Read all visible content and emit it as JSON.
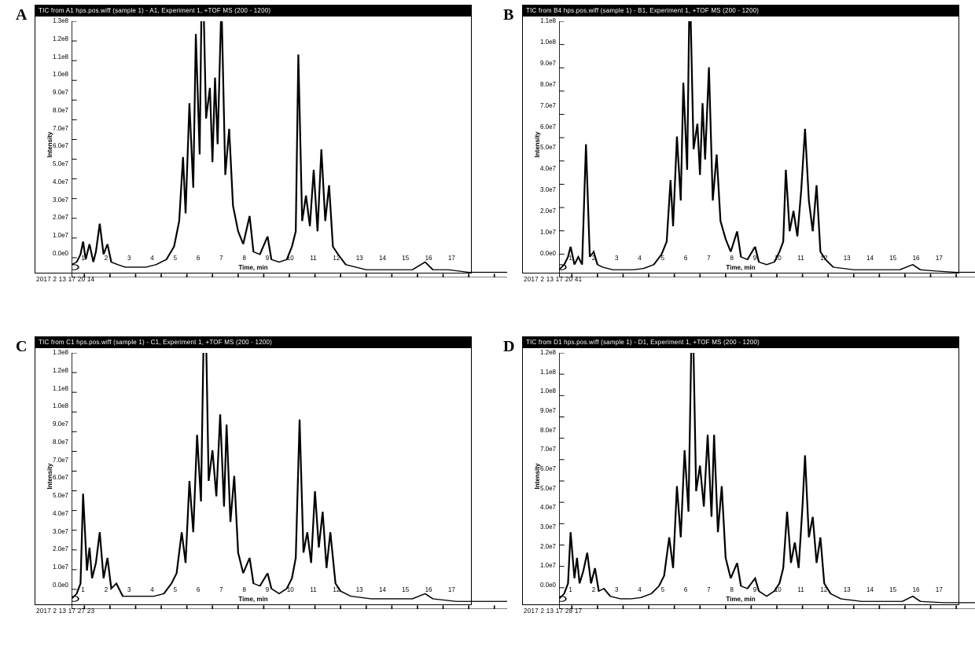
{
  "figure": {
    "aspect": [
      1240,
      822
    ],
    "background_color": "#ffffff",
    "line_color": "#000000",
    "line_width": 1.2,
    "axis_color": "#000000",
    "tick_fontsize": 8,
    "label_fontsize": 8,
    "title_strip_bg": "#000000",
    "title_strip_fg": "#ffffff",
    "panel_letter_font": "Times New Roman",
    "panel_letter_fontsize": 20,
    "ylabel": "Intensity",
    "xlabel": "Time, min",
    "xlim": [
      0.5,
      17.5
    ],
    "xticks": [
      1,
      2,
      3,
      4,
      5,
      6,
      7,
      8,
      9,
      10,
      11,
      12,
      13,
      14,
      15,
      16,
      17
    ]
  },
  "panels": {
    "A": {
      "letter": "A",
      "title": "TIC from A1 hps.pos.wiff (sample 1) - A1, Experiment 1, +TOF MS (200 - 1200)",
      "timestamp": "2017 2 13 17 20 14",
      "ymax_label": "1.3e8",
      "ymax": 130000000.0,
      "yticks": [
        "0.0e0",
        "1.0e7",
        "2.0e7",
        "3.0e7",
        "4.0e7",
        "5.0e7",
        "6.0e7",
        "7.0e7",
        "8.0e7",
        "9.0e7",
        "1.0e8",
        "1.1e8",
        "1.2e8",
        "1.3e8"
      ],
      "series": [
        [
          0.5,
          0.05
        ],
        [
          0.7,
          0.06
        ],
        [
          0.85,
          0.09
        ],
        [
          0.95,
          0.14
        ],
        [
          1.05,
          0.07
        ],
        [
          1.2,
          0.13
        ],
        [
          1.35,
          0.06
        ],
        [
          1.45,
          0.1
        ],
        [
          1.6,
          0.21
        ],
        [
          1.75,
          0.09
        ],
        [
          1.9,
          0.13
        ],
        [
          2.05,
          0.06
        ],
        [
          2.3,
          0.05
        ],
        [
          2.6,
          0.04
        ],
        [
          3.0,
          0.04
        ],
        [
          3.4,
          0.04
        ],
        [
          3.8,
          0.05
        ],
        [
          4.2,
          0.07
        ],
        [
          4.5,
          0.12
        ],
        [
          4.7,
          0.22
        ],
        [
          4.85,
          0.47
        ],
        [
          4.95,
          0.25
        ],
        [
          5.1,
          0.68
        ],
        [
          5.25,
          0.35
        ],
        [
          5.35,
          0.95
        ],
        [
          5.5,
          0.48
        ],
        [
          5.6,
          1.3
        ],
        [
          5.75,
          0.62
        ],
        [
          5.9,
          0.74
        ],
        [
          6.0,
          0.45
        ],
        [
          6.1,
          0.78
        ],
        [
          6.2,
          0.52
        ],
        [
          6.35,
          1.08
        ],
        [
          6.5,
          0.4
        ],
        [
          6.65,
          0.58
        ],
        [
          6.8,
          0.28
        ],
        [
          7.0,
          0.18
        ],
        [
          7.2,
          0.13
        ],
        [
          7.45,
          0.24
        ],
        [
          7.6,
          0.1
        ],
        [
          7.85,
          0.09
        ],
        [
          8.15,
          0.16
        ],
        [
          8.3,
          0.07
        ],
        [
          8.6,
          0.06
        ],
        [
          8.9,
          0.07
        ],
        [
          9.1,
          0.12
        ],
        [
          9.25,
          0.18
        ],
        [
          9.35,
          0.87
        ],
        [
          9.5,
          0.22
        ],
        [
          9.65,
          0.32
        ],
        [
          9.8,
          0.2
        ],
        [
          9.95,
          0.42
        ],
        [
          10.1,
          0.18
        ],
        [
          10.25,
          0.5
        ],
        [
          10.4,
          0.22
        ],
        [
          10.55,
          0.36
        ],
        [
          10.7,
          0.12
        ],
        [
          10.9,
          0.09
        ],
        [
          11.2,
          0.05
        ],
        [
          12.0,
          0.03
        ],
        [
          13.0,
          0.03
        ],
        [
          13.8,
          0.03
        ],
        [
          14.3,
          0.06
        ],
        [
          14.6,
          0.03
        ],
        [
          15.2,
          0.03
        ],
        [
          16.0,
          0.02
        ],
        [
          17.0,
          0.02
        ],
        [
          17.5,
          0.02
        ]
      ]
    },
    "B": {
      "letter": "B",
      "title": "TIC from B4 hps.pos.wiff (sample 1) - B1, Experiment 1, +TOF MS (200 - 1200)",
      "timestamp": "2017 2 13 17 20 41",
      "ymax_label": "1.1e8",
      "ymax": 115000000.0,
      "yticks": [
        "0.0e0",
        "1.0e7",
        "2.0e7",
        "3.0e7",
        "4.0e7",
        "5.0e7",
        "6.0e7",
        "7.0e7",
        "8.0e7",
        "9.0e7",
        "1.0e8",
        "1.1e8"
      ],
      "series": [
        [
          0.5,
          0.03
        ],
        [
          0.7,
          0.05
        ],
        [
          0.85,
          0.08
        ],
        [
          0.95,
          0.12
        ],
        [
          1.1,
          0.05
        ],
        [
          1.25,
          0.08
        ],
        [
          1.4,
          0.05
        ],
        [
          1.55,
          0.52
        ],
        [
          1.7,
          0.08
        ],
        [
          1.85,
          0.1
        ],
        [
          2.0,
          0.05
        ],
        [
          2.2,
          0.04
        ],
        [
          2.6,
          0.03
        ],
        [
          3.0,
          0.03
        ],
        [
          3.4,
          0.03
        ],
        [
          3.8,
          0.035
        ],
        [
          4.2,
          0.05
        ],
        [
          4.5,
          0.09
        ],
        [
          4.7,
          0.14
        ],
        [
          4.85,
          0.38
        ],
        [
          4.95,
          0.2
        ],
        [
          5.1,
          0.55
        ],
        [
          5.25,
          0.3
        ],
        [
          5.35,
          0.76
        ],
        [
          5.5,
          0.42
        ],
        [
          5.6,
          1.18
        ],
        [
          5.75,
          0.5
        ],
        [
          5.9,
          0.6
        ],
        [
          6.0,
          0.4
        ],
        [
          6.1,
          0.68
        ],
        [
          6.2,
          0.46
        ],
        [
          6.35,
          0.82
        ],
        [
          6.5,
          0.3
        ],
        [
          6.65,
          0.48
        ],
        [
          6.8,
          0.22
        ],
        [
          7.0,
          0.15
        ],
        [
          7.2,
          0.1
        ],
        [
          7.45,
          0.18
        ],
        [
          7.6,
          0.08
        ],
        [
          7.85,
          0.07
        ],
        [
          8.15,
          0.12
        ],
        [
          8.3,
          0.06
        ],
        [
          8.6,
          0.05
        ],
        [
          8.9,
          0.06
        ],
        [
          9.1,
          0.1
        ],
        [
          9.25,
          0.14
        ],
        [
          9.35,
          0.42
        ],
        [
          9.5,
          0.18
        ],
        [
          9.65,
          0.26
        ],
        [
          9.8,
          0.16
        ],
        [
          9.95,
          0.34
        ],
        [
          10.1,
          0.58
        ],
        [
          10.25,
          0.3
        ],
        [
          10.4,
          0.18
        ],
        [
          10.55,
          0.36
        ],
        [
          10.7,
          0.1
        ],
        [
          10.9,
          0.07
        ],
        [
          11.2,
          0.04
        ],
        [
          12.0,
          0.03
        ],
        [
          13.0,
          0.03
        ],
        [
          13.8,
          0.03
        ],
        [
          14.3,
          0.05
        ],
        [
          14.6,
          0.03
        ],
        [
          15.2,
          0.025
        ],
        [
          16.0,
          0.02
        ],
        [
          17.0,
          0.02
        ],
        [
          17.5,
          0.02
        ]
      ]
    },
    "C": {
      "letter": "C",
      "title": "TIC from C1 hps.pos.wiff (sample 1) - C1, Experiment 1, +TOF MS (200 - 1200)",
      "timestamp": "2017 2 13 17 27 23",
      "ymax_label": "1.3e8",
      "ymax": 135000000.0,
      "yticks": [
        "0.0e0",
        "1.0e7",
        "2.0e7",
        "3.0e7",
        "4.0e7",
        "5.0e7",
        "6.0e7",
        "7.0e7",
        "8.0e7",
        "9.0e7",
        "1.0e8",
        "1.1e8",
        "1.2e8",
        "1.3e8"
      ],
      "series": [
        [
          0.5,
          0.04
        ],
        [
          0.7,
          0.06
        ],
        [
          0.85,
          0.1
        ],
        [
          0.95,
          0.45
        ],
        [
          1.1,
          0.15
        ],
        [
          1.2,
          0.24
        ],
        [
          1.3,
          0.12
        ],
        [
          1.45,
          0.18
        ],
        [
          1.6,
          0.3
        ],
        [
          1.75,
          0.12
        ],
        [
          1.9,
          0.2
        ],
        [
          2.05,
          0.08
        ],
        [
          2.25,
          0.1
        ],
        [
          2.5,
          0.05
        ],
        [
          2.9,
          0.05
        ],
        [
          3.3,
          0.05
        ],
        [
          3.7,
          0.05
        ],
        [
          4.1,
          0.06
        ],
        [
          4.4,
          0.1
        ],
        [
          4.6,
          0.14
        ],
        [
          4.8,
          0.3
        ],
        [
          4.95,
          0.18
        ],
        [
          5.1,
          0.5
        ],
        [
          5.25,
          0.3
        ],
        [
          5.4,
          0.68
        ],
        [
          5.55,
          0.42
        ],
        [
          5.7,
          1.35
        ],
        [
          5.85,
          0.5
        ],
        [
          6.0,
          0.62
        ],
        [
          6.15,
          0.44
        ],
        [
          6.3,
          0.76
        ],
        [
          6.45,
          0.4
        ],
        [
          6.55,
          0.72
        ],
        [
          6.7,
          0.34
        ],
        [
          6.85,
          0.52
        ],
        [
          7.0,
          0.22
        ],
        [
          7.2,
          0.14
        ],
        [
          7.45,
          0.2
        ],
        [
          7.6,
          0.1
        ],
        [
          7.85,
          0.09
        ],
        [
          8.15,
          0.14
        ],
        [
          8.3,
          0.08
        ],
        [
          8.6,
          0.06
        ],
        [
          8.9,
          0.08
        ],
        [
          9.1,
          0.12
        ],
        [
          9.25,
          0.2
        ],
        [
          9.4,
          0.74
        ],
        [
          9.55,
          0.22
        ],
        [
          9.7,
          0.3
        ],
        [
          9.85,
          0.18
        ],
        [
          10.0,
          0.46
        ],
        [
          10.15,
          0.24
        ],
        [
          10.3,
          0.38
        ],
        [
          10.45,
          0.16
        ],
        [
          10.6,
          0.3
        ],
        [
          10.8,
          0.1
        ],
        [
          11.0,
          0.07
        ],
        [
          11.4,
          0.05
        ],
        [
          12.2,
          0.04
        ],
        [
          13.0,
          0.04
        ],
        [
          13.8,
          0.04
        ],
        [
          14.3,
          0.06
        ],
        [
          14.6,
          0.04
        ],
        [
          15.5,
          0.03
        ],
        [
          16.5,
          0.03
        ],
        [
          17.5,
          0.03
        ]
      ]
    },
    "D": {
      "letter": "D",
      "title": "TIC from D1 hps.pos.wiff (sample 1) - D1, Experiment 1, +TOF MS (200 - 1200)",
      "timestamp": "2017 2 13 17 28 17",
      "ymax_label": "1.2e8",
      "ymax": 125000000.0,
      "yticks": [
        "0.0e0",
        "1.0e7",
        "2.0e7",
        "3.0e7",
        "4.0e7",
        "5.0e7",
        "6.0e7",
        "7.0e7",
        "8.0e7",
        "9.0e7",
        "1.0e8",
        "1.1e8",
        "1.2e8"
      ],
      "series": [
        [
          0.5,
          0.04
        ],
        [
          0.7,
          0.06
        ],
        [
          0.85,
          0.1
        ],
        [
          0.95,
          0.3
        ],
        [
          1.1,
          0.12
        ],
        [
          1.2,
          0.2
        ],
        [
          1.3,
          0.1
        ],
        [
          1.45,
          0.15
        ],
        [
          1.6,
          0.22
        ],
        [
          1.75,
          0.1
        ],
        [
          1.9,
          0.16
        ],
        [
          2.05,
          0.07
        ],
        [
          2.25,
          0.08
        ],
        [
          2.5,
          0.05
        ],
        [
          2.9,
          0.04
        ],
        [
          3.3,
          0.04
        ],
        [
          3.7,
          0.045
        ],
        [
          4.1,
          0.06
        ],
        [
          4.4,
          0.09
        ],
        [
          4.6,
          0.13
        ],
        [
          4.8,
          0.28
        ],
        [
          4.95,
          0.16
        ],
        [
          5.1,
          0.48
        ],
        [
          5.25,
          0.28
        ],
        [
          5.4,
          0.62
        ],
        [
          5.55,
          0.38
        ],
        [
          5.7,
          1.26
        ],
        [
          5.85,
          0.46
        ],
        [
          6.0,
          0.56
        ],
        [
          6.15,
          0.4
        ],
        [
          6.3,
          0.68
        ],
        [
          6.45,
          0.36
        ],
        [
          6.55,
          0.68
        ],
        [
          6.7,
          0.3
        ],
        [
          6.85,
          0.48
        ],
        [
          7.0,
          0.2
        ],
        [
          7.2,
          0.12
        ],
        [
          7.45,
          0.18
        ],
        [
          7.6,
          0.09
        ],
        [
          7.85,
          0.08
        ],
        [
          8.15,
          0.12
        ],
        [
          8.3,
          0.07
        ],
        [
          8.6,
          0.05
        ],
        [
          8.9,
          0.07
        ],
        [
          9.1,
          0.1
        ],
        [
          9.25,
          0.16
        ],
        [
          9.4,
          0.38
        ],
        [
          9.55,
          0.18
        ],
        [
          9.7,
          0.26
        ],
        [
          9.85,
          0.16
        ],
        [
          10.0,
          0.4
        ],
        [
          10.1,
          0.6
        ],
        [
          10.25,
          0.28
        ],
        [
          10.4,
          0.36
        ],
        [
          10.55,
          0.18
        ],
        [
          10.7,
          0.28
        ],
        [
          10.85,
          0.1
        ],
        [
          11.1,
          0.06
        ],
        [
          11.5,
          0.04
        ],
        [
          12.3,
          0.03
        ],
        [
          13.2,
          0.03
        ],
        [
          13.9,
          0.03
        ],
        [
          14.3,
          0.05
        ],
        [
          14.6,
          0.03
        ],
        [
          15.5,
          0.025
        ],
        [
          16.5,
          0.025
        ],
        [
          17.5,
          0.025
        ]
      ]
    }
  }
}
